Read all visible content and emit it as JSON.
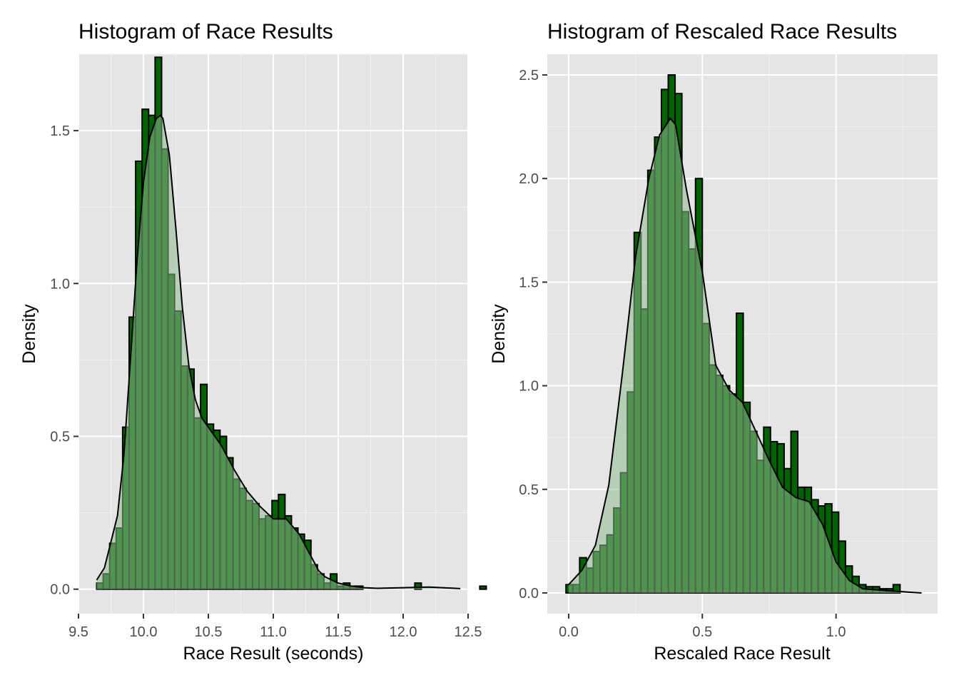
{
  "chart_data": [
    {
      "type": "bar",
      "title": "Histogram of Race Results",
      "xlabel": "Race Result (seconds)",
      "ylabel": "Density",
      "xlim": [
        9.5,
        12.5
      ],
      "ylim": [
        0,
        1.75
      ],
      "xticks": [
        "9.5",
        "10.0",
        "10.5",
        "11.0",
        "11.5",
        "12.0",
        "12.5"
      ],
      "yticks": [
        "0.0",
        "0.5",
        "1.0",
        "1.5"
      ],
      "bin_start": 9.64,
      "bin_width": 0.05,
      "values": [
        0.02,
        0.05,
        0.15,
        0.2,
        0.53,
        0.89,
        1.4,
        1.57,
        1.55,
        1.74,
        1.44,
        1.03,
        0.91,
        0.73,
        0.72,
        0.56,
        0.67,
        0.54,
        0.52,
        0.5,
        0.43,
        0.36,
        0.33,
        0.29,
        0.28,
        0.23,
        0.24,
        0.29,
        0.31,
        0.24,
        0.2,
        0.18,
        0.16,
        0.08,
        0.05,
        0.02,
        0.05,
        0.01,
        0.02,
        0.01,
        0.01,
        0.0,
        0.0,
        0.0,
        0.0,
        0.0,
        0.0,
        0.0,
        0.0,
        0.02,
        0.0,
        0.0,
        0.0,
        0.0,
        0.0,
        0.0,
        0.0,
        0.0,
        0.0,
        0.01
      ],
      "density_x": [
        9.64,
        9.7,
        9.8,
        9.85,
        9.9,
        9.95,
        10.0,
        10.05,
        10.1,
        10.13,
        10.15,
        10.2,
        10.25,
        10.3,
        10.35,
        10.4,
        10.45,
        10.5,
        10.55,
        10.6,
        10.7,
        10.8,
        10.9,
        11.0,
        11.05,
        11.1,
        11.2,
        11.25,
        11.3,
        11.35,
        11.4,
        11.5,
        11.6,
        11.7,
        11.8,
        12.0,
        12.2,
        12.44
      ],
      "density_y": [
        0.03,
        0.07,
        0.24,
        0.44,
        0.75,
        1.07,
        1.33,
        1.48,
        1.54,
        1.55,
        1.54,
        1.42,
        1.18,
        0.92,
        0.73,
        0.62,
        0.56,
        0.53,
        0.5,
        0.47,
        0.39,
        0.32,
        0.27,
        0.23,
        0.23,
        0.23,
        0.18,
        0.14,
        0.1,
        0.06,
        0.04,
        0.02,
        0.01,
        0.005,
        0.003,
        0.005,
        0.007,
        0.002
      ],
      "fill_color": "#006400",
      "density_fill": "#8fbc8f"
    },
    {
      "type": "bar",
      "title": "Histogram of Rescaled Race Results",
      "xlabel": "Rescaled Race Result",
      "ylabel": "Density",
      "xlim": [
        -0.08,
        1.38
      ],
      "ylim": [
        -0.1,
        2.6
      ],
      "xticks": [
        "0.0",
        "0.5",
        "1.0"
      ],
      "yticks": [
        "0.0",
        "0.5",
        "1.0",
        "1.5",
        "2.0",
        "2.5"
      ],
      "bin_start": -0.01,
      "bin_width": 0.0255,
      "values": [
        0.04,
        0.04,
        0.17,
        0.12,
        0.2,
        0.23,
        0.28,
        0.41,
        0.58,
        0.97,
        1.74,
        1.37,
        2.04,
        2.2,
        2.43,
        2.5,
        2.41,
        1.84,
        1.66,
        2.0,
        1.3,
        1.1,
        1.05,
        1.0,
        0.96,
        1.35,
        0.92,
        0.78,
        0.64,
        0.8,
        0.73,
        0.72,
        0.6,
        0.78,
        0.51,
        0.51,
        0.45,
        0.42,
        0.43,
        0.39,
        0.25,
        0.13,
        0.08,
        0.04,
        0.03,
        0.03,
        0.02,
        0.02,
        0.04,
        0.0,
        0.0,
        0.0,
        0.0,
        0.0,
        0.0,
        0.0,
        0.0,
        0.0,
        0.0,
        0.0,
        0.0,
        0.0,
        0.02
      ],
      "density_x": [
        0.0,
        0.05,
        0.1,
        0.15,
        0.2,
        0.25,
        0.3,
        0.34,
        0.38,
        0.4,
        0.44,
        0.5,
        0.55,
        0.6,
        0.65,
        0.7,
        0.75,
        0.8,
        0.85,
        0.9,
        0.95,
        1.0,
        1.05,
        1.1,
        1.2,
        1.32
      ],
      "density_y": [
        0.04,
        0.11,
        0.23,
        0.52,
        1.05,
        1.62,
        2.0,
        2.21,
        2.29,
        2.26,
        1.95,
        1.55,
        1.1,
        0.98,
        0.92,
        0.78,
        0.64,
        0.51,
        0.46,
        0.44,
        0.33,
        0.15,
        0.06,
        0.02,
        0.01,
        0.0
      ],
      "fill_color": "#006400",
      "density_fill": "#8fbc8f"
    }
  ]
}
